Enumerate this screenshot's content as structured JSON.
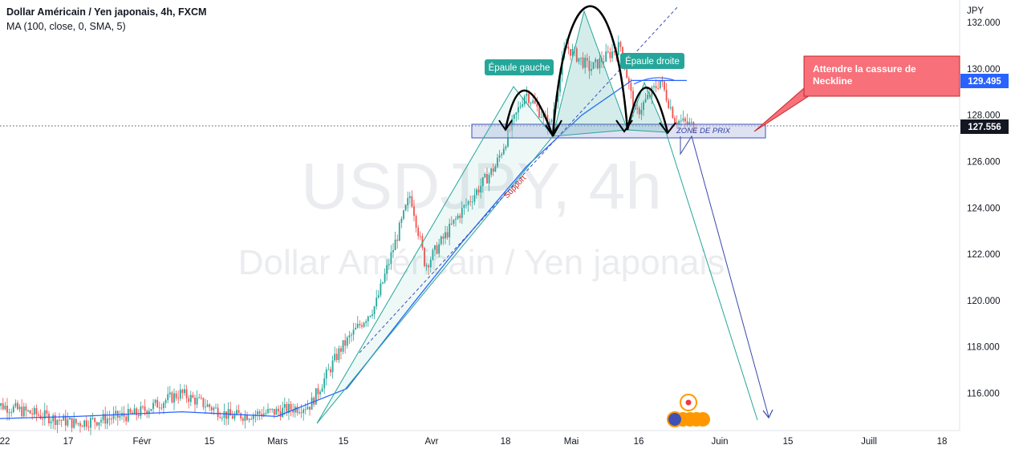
{
  "legend": {
    "title": "Dollar Américain / Yen japonais, 4h, FXCM",
    "indicator": "MA (100, close, 0, SMA, 5)"
  },
  "watermark": {
    "symbol_line": "USDJPY, 4h",
    "name_line": "Dollar Américain / Yen japonais"
  },
  "currency_label": "JPY",
  "colors": {
    "up": "#26a69a",
    "down": "#ef5350",
    "ma": "#2962ff",
    "annotation_green": "#26a69a",
    "callout": "#f7707a",
    "zone_fill": "#c5cae9",
    "price_tag_current": "#131722",
    "price_tag_ma": "#2962ff"
  },
  "price_tags": {
    "ma_value": "129.495",
    "last_price": "127.556"
  },
  "annotations": {
    "left_shoulder": "Épaule gauche",
    "right_shoulder": "Épaule droite",
    "callout_line1": "Attendre la cassure de",
    "callout_line2": "Neckline",
    "zone": "ZONE DE PRIX",
    "support": "Support"
  },
  "chart_data": {
    "type": "candlestick",
    "symbol": "USDJPY",
    "timeframe": "4h",
    "y_ticks": [
      116,
      118,
      120,
      122,
      124,
      126,
      128,
      130,
      132
    ],
    "y_tick_labels": [
      "116.000",
      "118.000",
      "120.000",
      "122.000",
      "124.000",
      "126.000",
      "128.000",
      "130.000",
      "132.000"
    ],
    "ylim": [
      114.7,
      132.6
    ],
    "x_ticks": [
      "22",
      "17",
      "Févr",
      "15",
      "Mars",
      "15",
      "Avr",
      "18",
      "Mai",
      "16",
      "Juin",
      "15",
      "Juill",
      "18"
    ],
    "price_path": [
      {
        "date": "2022-01-03",
        "price": 115.6
      },
      {
        "date": "2022-01-10",
        "price": 115.2
      },
      {
        "date": "2022-01-20",
        "price": 114.7
      },
      {
        "date": "2022-02-01",
        "price": 115.1
      },
      {
        "date": "2022-02-10",
        "price": 116.0
      },
      {
        "date": "2022-02-20",
        "price": 115.0
      },
      {
        "date": "2022-03-01",
        "price": 115.2
      },
      {
        "date": "2022-03-08",
        "price": 115.5
      },
      {
        "date": "2022-03-14",
        "price": 117.9
      },
      {
        "date": "2022-03-21",
        "price": 119.8
      },
      {
        "date": "2022-03-28",
        "price": 124.6
      },
      {
        "date": "2022-03-31",
        "price": 121.5
      },
      {
        "date": "2022-04-07",
        "price": 123.8
      },
      {
        "date": "2022-04-14",
        "price": 125.8
      },
      {
        "date": "2022-04-20",
        "price": 129.0
      },
      {
        "date": "2022-04-25",
        "price": 127.5
      },
      {
        "date": "2022-04-28",
        "price": 131.0
      },
      {
        "date": "2022-05-03",
        "price": 130.0
      },
      {
        "date": "2022-05-09",
        "price": 131.0
      },
      {
        "date": "2022-05-12",
        "price": 128.0
      },
      {
        "date": "2022-05-17",
        "price": 129.5
      },
      {
        "date": "2022-05-20",
        "price": 127.8
      },
      {
        "date": "2022-05-24",
        "price": 127.5
      }
    ],
    "ma_path": [
      {
        "date": "2022-01-03",
        "price": 114.9
      },
      {
        "date": "2022-01-20",
        "price": 115.0
      },
      {
        "date": "2022-02-10",
        "price": 115.2
      },
      {
        "date": "2022-03-01",
        "price": 115.0
      },
      {
        "date": "2022-03-15",
        "price": 116.2
      },
      {
        "date": "2022-03-28",
        "price": 119.8
      },
      {
        "date": "2022-04-07",
        "price": 122.5
      },
      {
        "date": "2022-04-20",
        "price": 125.8
      },
      {
        "date": "2022-05-01",
        "price": 128.0
      },
      {
        "date": "2022-05-11",
        "price": 129.5
      },
      {
        "date": "2022-05-22",
        "price": 129.5
      }
    ],
    "neckline_zone": [
      127.1,
      127.8
    ],
    "last_price": 127.556,
    "ma_value": 129.495
  }
}
